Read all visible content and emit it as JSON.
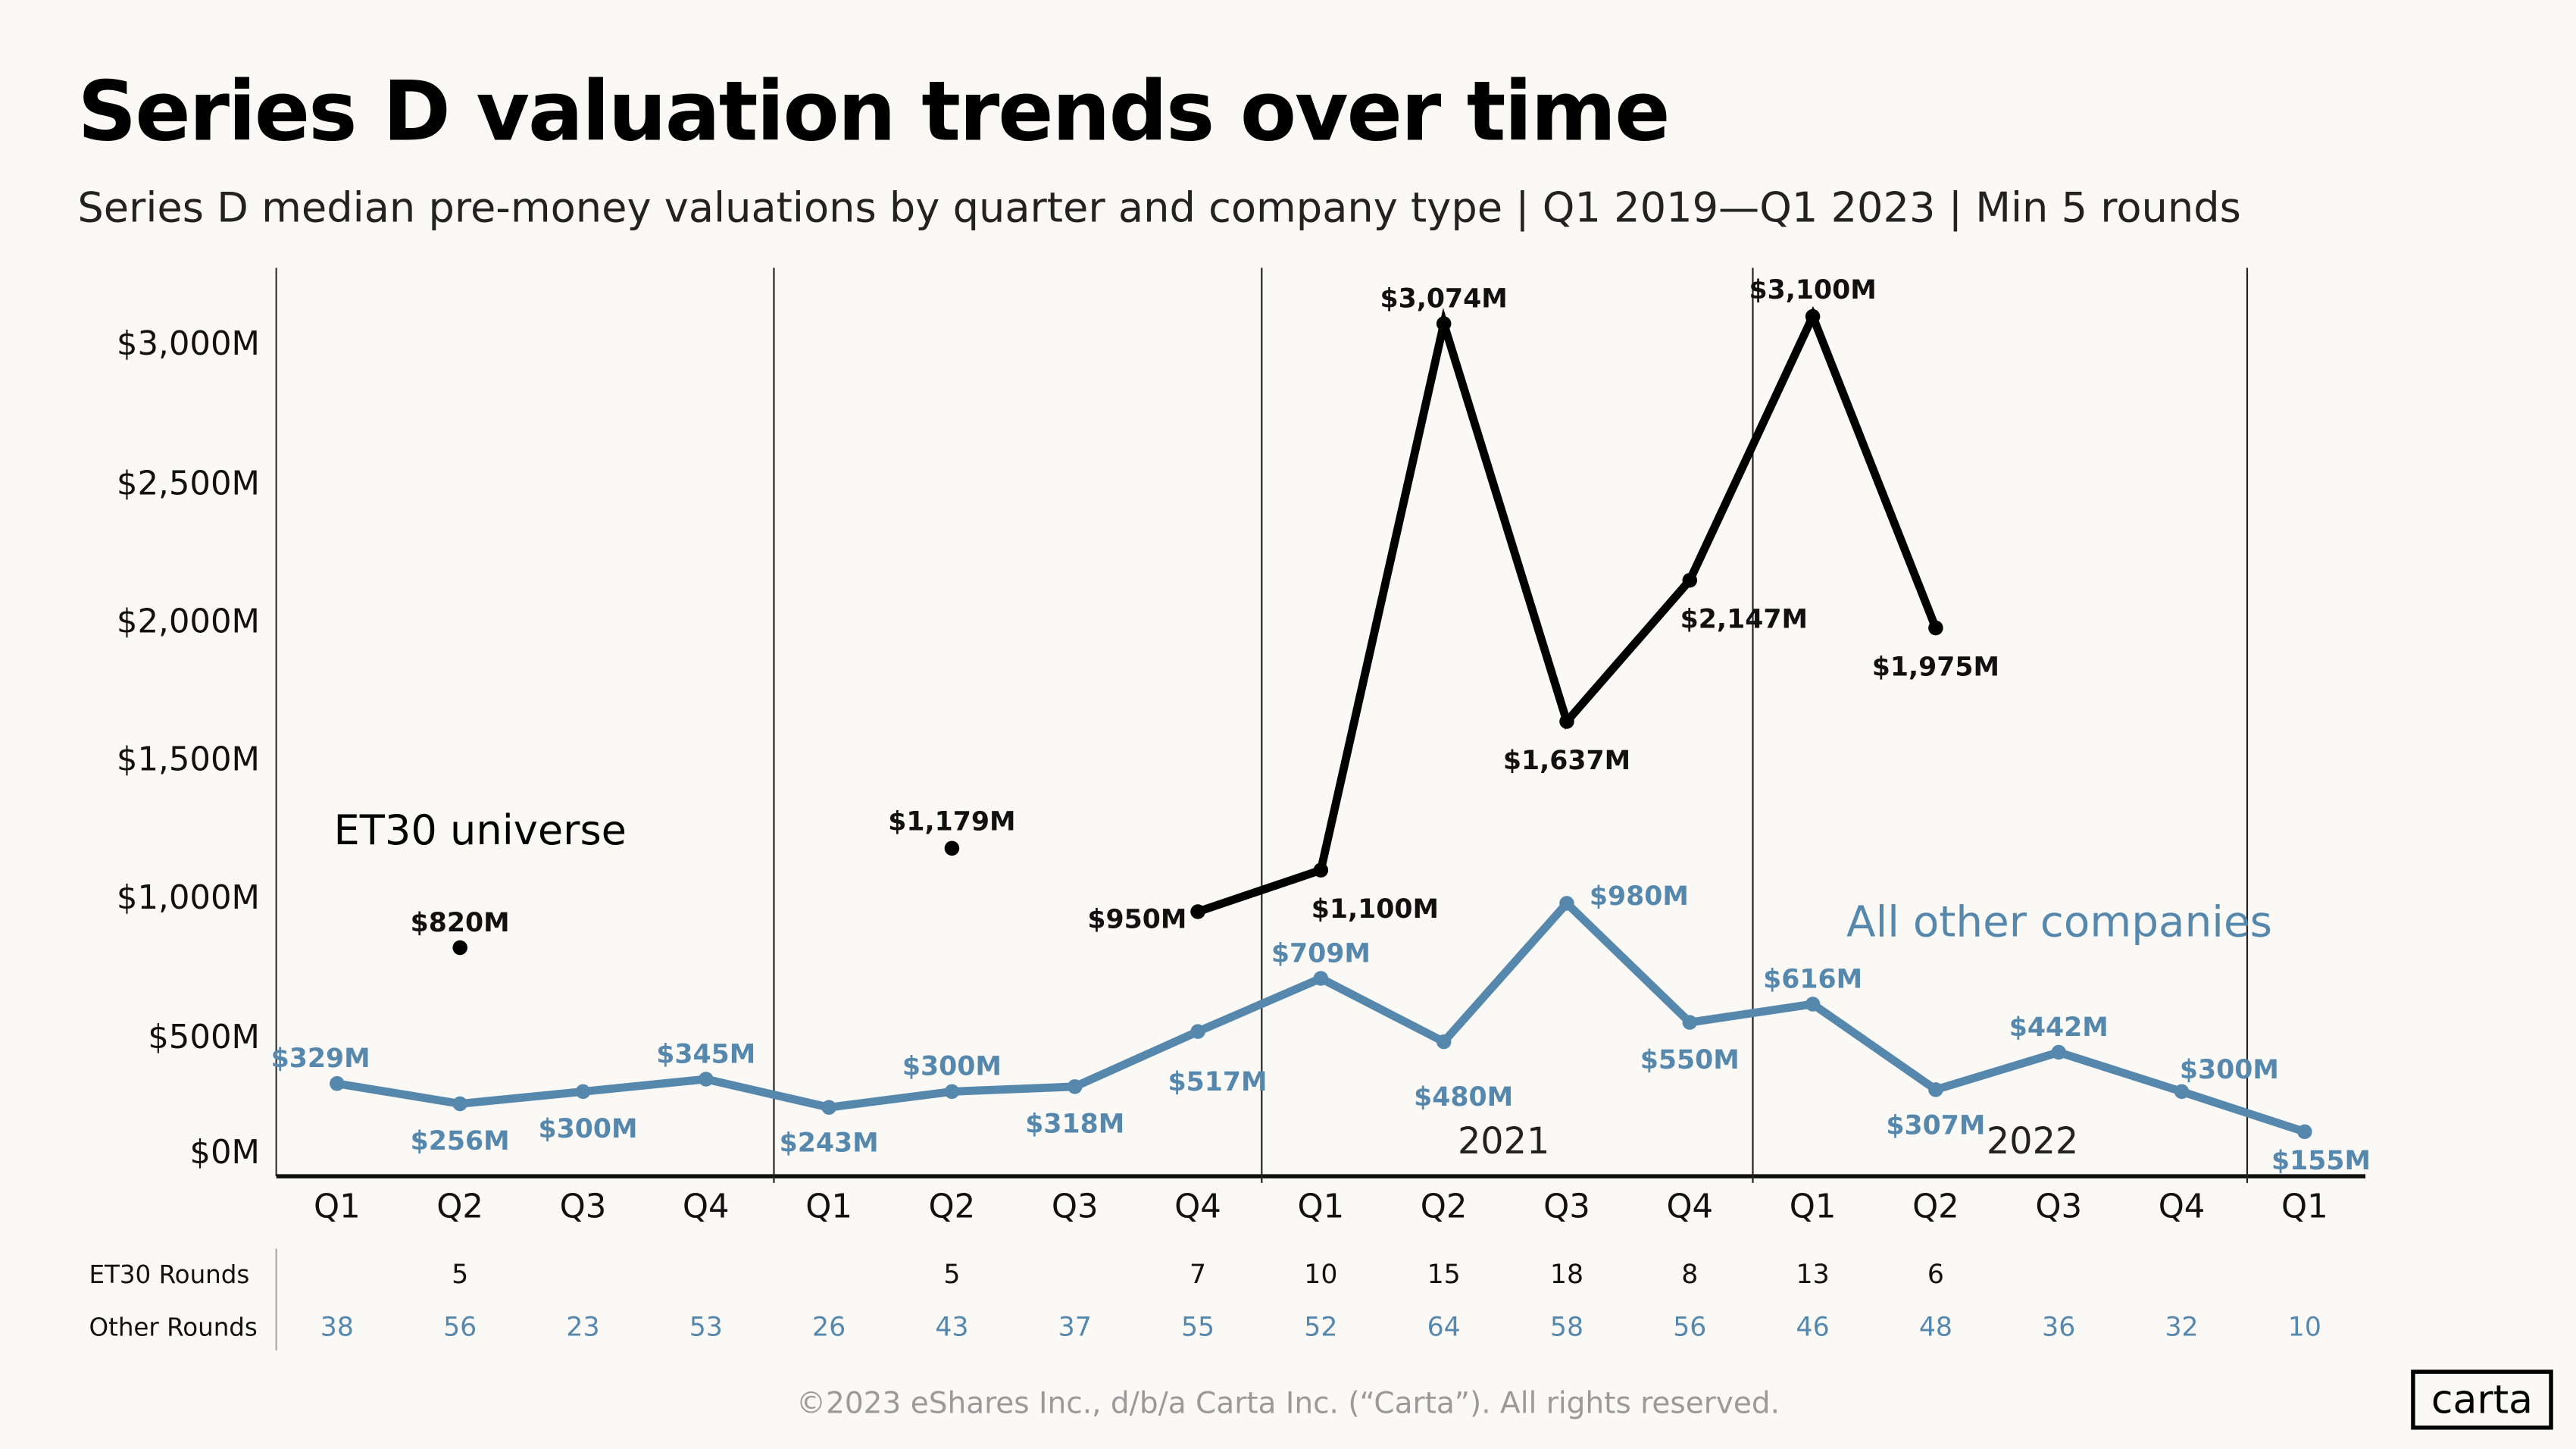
{
  "header": {
    "title": "Series D valuation trends over time",
    "subtitle": "Series D median pre-money valuations by quarter and company type | Q1 2019—Q1 2023 | Min 5 rounds"
  },
  "chart_data": {
    "type": "line",
    "title": "Series D valuation trends over time",
    "subtitle": "Series D median pre-money valuations by quarter and company type | Q1 2019—Q1 2023 | Min 5 rounds",
    "categories": [
      "Q1",
      "Q2",
      "Q3",
      "Q4",
      "Q1",
      "Q2",
      "Q3",
      "Q4",
      "Q1",
      "Q2",
      "Q3",
      "Q4",
      "Q1",
      "Q2",
      "Q3",
      "Q4",
      "Q1"
    ],
    "year_labels": [
      {
        "index": 9.5,
        "label": "2021"
      },
      {
        "index": 13.8,
        "label": "2022"
      }
    ],
    "ylim": [
      0,
      3200
    ],
    "yticks": [
      0,
      500,
      1000,
      1500,
      2000,
      2500,
      3000
    ],
    "ytick_labels": [
      "$0M",
      "$500M",
      "$1,000M",
      "$1,500M",
      "$2,000M",
      "$2,500M",
      "$3,000M"
    ],
    "grid": false,
    "series": [
      {
        "name": "ET30 universe",
        "color": "#000000",
        "values": [
          null,
          820,
          null,
          null,
          null,
          1179,
          null,
          950,
          1100,
          3074,
          1637,
          2147,
          3100,
          1975,
          null,
          null,
          null
        ],
        "labels": [
          null,
          "$820M",
          null,
          null,
          null,
          "$1,179M",
          null,
          "$950M",
          "$1,100M",
          "$3,074M",
          "$1,637M",
          "$2,147M",
          "$3,100M",
          "$1,975M",
          null,
          null,
          null
        ]
      },
      {
        "name": "All other companies",
        "color": "#5688ad",
        "values": [
          329,
          256,
          300,
          345,
          243,
          300,
          318,
          517,
          709,
          480,
          980,
          550,
          616,
          307,
          442,
          300,
          155
        ],
        "labels": [
          "$329M",
          "$256M",
          "$300M",
          "$345M",
          "$243M",
          "$300M",
          "$318M",
          "$517M",
          "$709M",
          "$480M",
          "$980M",
          "$550M",
          "$616M",
          "$307M",
          "$442M",
          "$300M",
          "$155M"
        ]
      }
    ]
  },
  "table": {
    "rows": [
      {
        "label": "ET30 Rounds",
        "values": [
          "",
          "5",
          "",
          "",
          "",
          "5",
          "",
          "7",
          "10",
          "15",
          "18",
          "8",
          "13",
          "6",
          "",
          "",
          ""
        ]
      },
      {
        "label": "Other Rounds",
        "values": [
          "38",
          "56",
          "23",
          "53",
          "26",
          "43",
          "37",
          "55",
          "52",
          "64",
          "58",
          "56",
          "46",
          "48",
          "36",
          "32",
          "10"
        ]
      }
    ]
  },
  "footer": {
    "copyright": "©2023 eShares Inc., d/b/a Carta Inc. (“Carta”). All rights reserved.",
    "logo": "carta"
  }
}
